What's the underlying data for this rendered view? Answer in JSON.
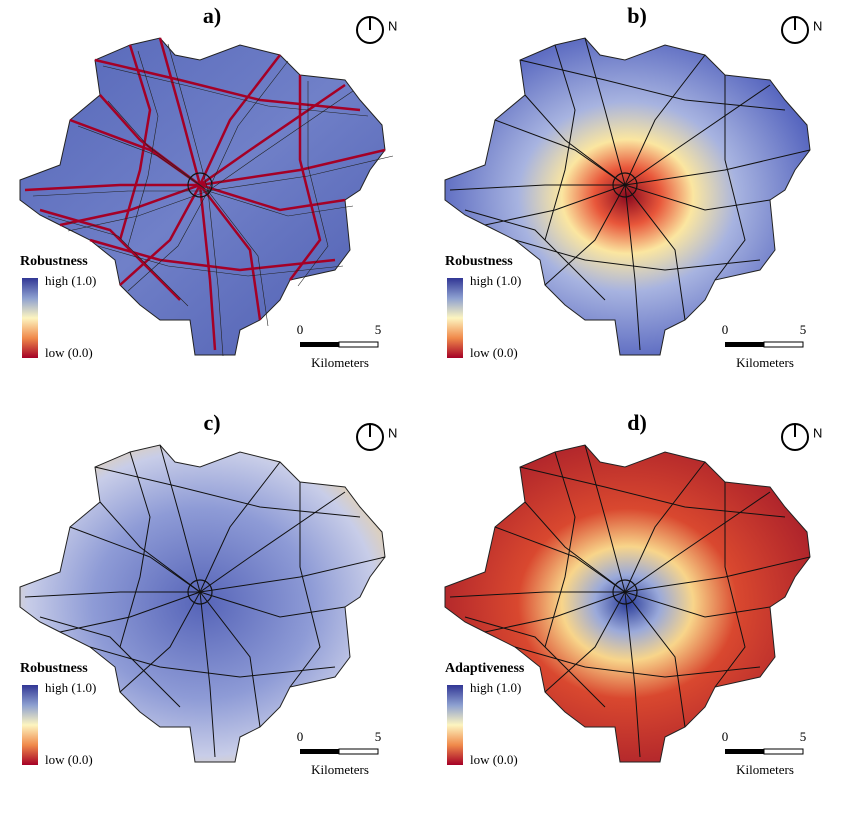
{
  "panels": [
    {
      "label": "a)",
      "legend_title": "Robustness",
      "legend_high": "high (1.0)",
      "legend_low": "low (0.0)",
      "scale_ticks": [
        "0",
        "5"
      ],
      "scale_unit": "Kilometers",
      "north": "N"
    },
    {
      "label": "b)",
      "legend_title": "Robustness",
      "legend_high": "high (1.0)",
      "legend_low": "low (0.0)",
      "scale_ticks": [
        "0",
        "5"
      ],
      "scale_unit": "Kilometers",
      "north": "N"
    },
    {
      "label": "c)",
      "legend_title": "Robustness",
      "legend_high": "high (1.0)",
      "legend_low": "low (0.0)",
      "scale_ticks": [
        "0",
        "5"
      ],
      "scale_unit": "Kilometers",
      "north": "N"
    },
    {
      "label": "d)",
      "legend_title": "Adaptiveness",
      "legend_high": "high (1.0)",
      "legend_low": "low (0.0)",
      "scale_ticks": [
        "0",
        "5"
      ],
      "scale_unit": "Kilometers",
      "north": "N"
    }
  ]
}
